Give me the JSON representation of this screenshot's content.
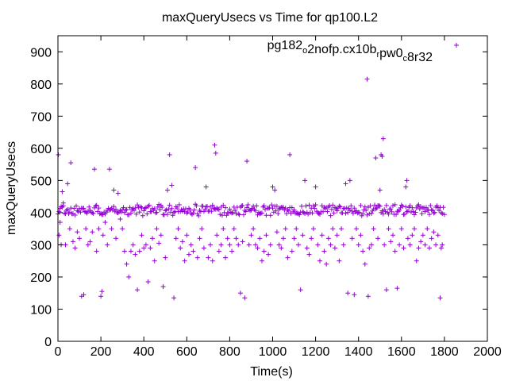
{
  "chart_data": {
    "type": "scatter",
    "title": "maxQueryUsecs vs Time for qp100.L2",
    "xlabel": "Time(s)",
    "ylabel": "maxQueryUsecs",
    "xlim": [
      0,
      2000
    ],
    "ylim": [
      0,
      950
    ],
    "xticks": [
      0,
      200,
      400,
      600,
      800,
      1000,
      1200,
      1400,
      1600,
      1800,
      2000
    ],
    "yticks": [
      0,
      100,
      200,
      300,
      400,
      500,
      600,
      700,
      800,
      900
    ],
    "grid": false,
    "marker": "+",
    "color": "#9400d3",
    "legend_position": "top-right",
    "series": [
      {
        "name": "pg182_o2nofp.cx10b_rpw0_c8r32",
        "legend_parts": [
          {
            "text": "pg182",
            "sub": false
          },
          {
            "text": "o",
            "sub": true
          },
          {
            "text": "2nofp.cx10b",
            "sub": false
          },
          {
            "text": "r",
            "sub": true
          },
          {
            "text": "pw0",
            "sub": false
          },
          {
            "text": "c",
            "sub": true
          },
          {
            "text": "8r32",
            "sub": false
          }
        ],
        "baseline_start": 0,
        "baseline_end": 1800,
        "baseline_step": 5,
        "baseline_center": 408,
        "baseline_spread": 30,
        "points": [
          [
            2,
            580
          ],
          [
            5,
            330
          ],
          [
            10,
            370
          ],
          [
            15,
            300
          ],
          [
            20,
            465
          ],
          [
            25,
            430
          ],
          [
            35,
            300
          ],
          [
            45,
            490
          ],
          [
            55,
            350
          ],
          [
            60,
            555
          ],
          [
            70,
            310
          ],
          [
            80,
            290
          ],
          [
            90,
            340
          ],
          [
            100,
            320
          ],
          [
            110,
            140
          ],
          [
            120,
            145
          ],
          [
            130,
            350
          ],
          [
            140,
            300
          ],
          [
            150,
            310
          ],
          [
            160,
            340
          ],
          [
            170,
            535
          ],
          [
            180,
            280
          ],
          [
            190,
            350
          ],
          [
            200,
            140
          ],
          [
            205,
            155
          ],
          [
            210,
            330
          ],
          [
            220,
            370
          ],
          [
            230,
            300
          ],
          [
            240,
            535
          ],
          [
            250,
            350
          ],
          [
            260,
            470
          ],
          [
            270,
            320
          ],
          [
            280,
            460
          ],
          [
            290,
            380
          ],
          [
            300,
            350
          ],
          [
            310,
            280
          ],
          [
            320,
            240
          ],
          [
            330,
            200
          ],
          [
            340,
            280
          ],
          [
            350,
            300
          ],
          [
            360,
            270
          ],
          [
            370,
            160
          ],
          [
            380,
            280
          ],
          [
            390,
            330
          ],
          [
            400,
            290
          ],
          [
            410,
            300
          ],
          [
            420,
            185
          ],
          [
            430,
            290
          ],
          [
            440,
            320
          ],
          [
            450,
            250
          ],
          [
            460,
            350
          ],
          [
            470,
            305
          ],
          [
            480,
            330
          ],
          [
            490,
            170
          ],
          [
            500,
            260
          ],
          [
            510,
            470
          ],
          [
            520,
            580
          ],
          [
            530,
            485
          ],
          [
            540,
            135
          ],
          [
            550,
            320
          ],
          [
            560,
            350
          ],
          [
            570,
            290
          ],
          [
            580,
            310
          ],
          [
            590,
            250
          ],
          [
            600,
            330
          ],
          [
            610,
            270
          ],
          [
            620,
            300
          ],
          [
            630,
            280
          ],
          [
            640,
            540
          ],
          [
            650,
            260
          ],
          [
            660,
            320
          ],
          [
            670,
            350
          ],
          [
            680,
            290
          ],
          [
            690,
            480
          ],
          [
            700,
            260
          ],
          [
            710,
            300
          ],
          [
            720,
            250
          ],
          [
            730,
            610
          ],
          [
            735,
            585
          ],
          [
            740,
            330
          ],
          [
            750,
            280
          ],
          [
            760,
            300
          ],
          [
            770,
            350
          ],
          [
            780,
            260
          ],
          [
            790,
            320
          ],
          [
            800,
            300
          ],
          [
            810,
            280
          ],
          [
            820,
            350
          ],
          [
            830,
            320
          ],
          [
            840,
            300
          ],
          [
            850,
            150
          ],
          [
            860,
            310
          ],
          [
            870,
            135
          ],
          [
            880,
            560
          ],
          [
            890,
            300
          ],
          [
            900,
            330
          ],
          [
            910,
            350
          ],
          [
            920,
            300
          ],
          [
            930,
            290
          ],
          [
            940,
            320
          ],
          [
            950,
            250
          ],
          [
            960,
            280
          ],
          [
            970,
            330
          ],
          [
            980,
            270
          ],
          [
            990,
            300
          ],
          [
            1000,
            480
          ],
          [
            1010,
            470
          ],
          [
            1020,
            340
          ],
          [
            1030,
            300
          ],
          [
            1040,
            290
          ],
          [
            1050,
            320
          ],
          [
            1060,
            350
          ],
          [
            1070,
            260
          ],
          [
            1080,
            580
          ],
          [
            1090,
            280
          ],
          [
            1100,
            320
          ],
          [
            1110,
            350
          ],
          [
            1120,
            300
          ],
          [
            1130,
            160
          ],
          [
            1140,
            330
          ],
          [
            1150,
            500
          ],
          [
            1160,
            290
          ],
          [
            1170,
            270
          ],
          [
            1180,
            320
          ],
          [
            1190,
            350
          ],
          [
            1200,
            480
          ],
          [
            1210,
            300
          ],
          [
            1220,
            250
          ],
          [
            1230,
            330
          ],
          [
            1240,
            280
          ],
          [
            1250,
            240
          ],
          [
            1260,
            320
          ],
          [
            1270,
            300
          ],
          [
            1280,
            350
          ],
          [
            1290,
            290
          ],
          [
            1300,
            330
          ],
          [
            1310,
            250
          ],
          [
            1320,
            350
          ],
          [
            1330,
            300
          ],
          [
            1340,
            490
          ],
          [
            1350,
            150
          ],
          [
            1360,
            500
          ],
          [
            1370,
            320
          ],
          [
            1380,
            145
          ],
          [
            1390,
            350
          ],
          [
            1400,
            300
          ],
          [
            1410,
            330
          ],
          [
            1420,
            280
          ],
          [
            1430,
            240
          ],
          [
            1440,
            815
          ],
          [
            1445,
            140
          ],
          [
            1450,
            290
          ],
          [
            1460,
            300
          ],
          [
            1470,
            350
          ],
          [
            1480,
            570
          ],
          [
            1490,
            320
          ],
          [
            1500,
            470
          ],
          [
            1505,
            580
          ],
          [
            1510,
            575
          ],
          [
            1515,
            630
          ],
          [
            1520,
            300
          ],
          [
            1530,
            160
          ],
          [
            1540,
            350
          ],
          [
            1550,
            310
          ],
          [
            1560,
            330
          ],
          [
            1570,
            280
          ],
          [
            1580,
            165
          ],
          [
            1590,
            300
          ],
          [
            1600,
            350
          ],
          [
            1610,
            290
          ],
          [
            1620,
            480
          ],
          [
            1625,
            500
          ],
          [
            1630,
            320
          ],
          [
            1640,
            300
          ],
          [
            1650,
            330
          ],
          [
            1660,
            350
          ],
          [
            1670,
            250
          ],
          [
            1680,
            290
          ],
          [
            1690,
            310
          ],
          [
            1700,
            330
          ],
          [
            1710,
            300
          ],
          [
            1720,
            350
          ],
          [
            1730,
            290
          ],
          [
            1740,
            320
          ],
          [
            1750,
            340
          ],
          [
            1760,
            300
          ],
          [
            1770,
            330
          ],
          [
            1780,
            135
          ],
          [
            1785,
            290
          ],
          [
            1790,
            300
          ]
        ]
      }
    ]
  }
}
